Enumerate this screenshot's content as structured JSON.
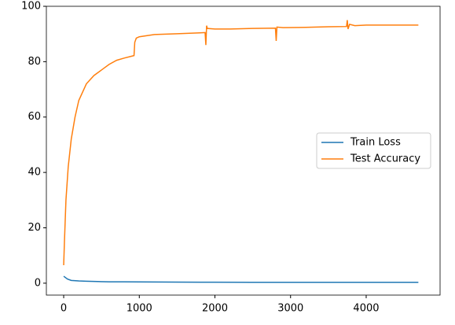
{
  "chart_data": {
    "type": "line",
    "series": [
      {
        "name": "Train Loss",
        "color": "#1f77b4",
        "x": [
          0,
          50,
          100,
          200,
          300,
          450,
          600,
          800,
          1000,
          1500,
          2000,
          2500,
          3000,
          3500,
          4000,
          4690
        ],
        "values": [
          2.5,
          1.5,
          1.0,
          0.8,
          0.7,
          0.6,
          0.5,
          0.48,
          0.45,
          0.4,
          0.35,
          0.33,
          0.3,
          0.3,
          0.3,
          0.3
        ]
      },
      {
        "name": "Test Accuracy",
        "color": "#ff7f0e",
        "x": [
          0,
          10,
          30,
          60,
          100,
          150,
          200,
          300,
          400,
          500,
          600,
          700,
          800,
          900,
          930,
          940,
          960,
          1000,
          1200,
          1500,
          1800,
          1870,
          1880,
          1890,
          1900,
          2000,
          2200,
          2500,
          2800,
          2810,
          2820,
          2900,
          3200,
          3500,
          3740,
          3750,
          3760,
          3780,
          3850,
          4000,
          4300,
          4690
        ],
        "values": [
          6.5,
          15,
          30,
          42,
          52,
          60,
          66,
          72,
          75,
          77,
          79,
          80.5,
          81.3,
          82,
          82.2,
          87,
          88.5,
          89,
          89.8,
          90.1,
          90.4,
          90.5,
          86,
          93,
          92,
          91.8,
          91.8,
          92,
          92.1,
          87.5,
          92.5,
          92.3,
          92.4,
          92.6,
          92.7,
          95,
          91.8,
          93.5,
          93,
          93.2,
          93.2,
          93.2
        ]
      }
    ],
    "xlim": [
      -229,
      4977
    ],
    "ylim": [
      -4.3,
      100
    ],
    "xticks": [
      0,
      1000,
      2000,
      3000,
      4000
    ],
    "yticks": [
      0,
      20,
      40,
      60,
      80,
      100
    ],
    "legend": "center right"
  }
}
